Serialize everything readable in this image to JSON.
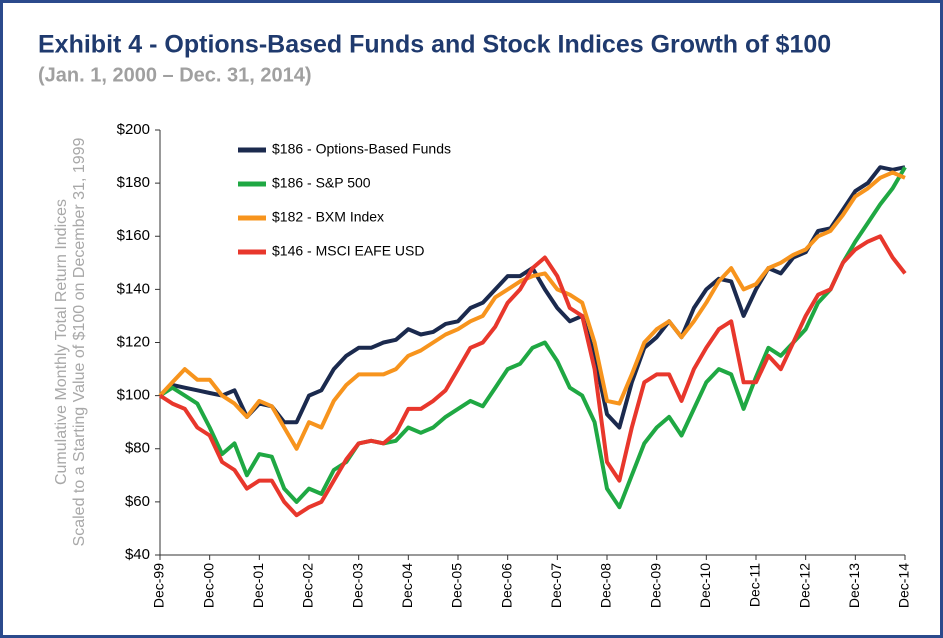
{
  "chart_data": {
    "type": "line",
    "title": "Exhibit 4 -  Options-Based Funds and Stock Indices Growth of $100",
    "subtitle": "(Jan. 1, 2000 – Dec. 31, 2014)",
    "ylabel": [
      "Cumulative Monthly Total Return Indices",
      "Scaled to a Starting Value of $100 on December 31, 1999"
    ],
    "categories": [
      "Dec-99",
      null,
      null,
      null,
      "Dec-00",
      null,
      null,
      null,
      "Dec-01",
      null,
      null,
      null,
      "Dec-02",
      null,
      null,
      null,
      "Dec-03",
      null,
      null,
      null,
      "Dec-04",
      null,
      null,
      null,
      "Dec-05",
      null,
      null,
      null,
      "Dec-06",
      null,
      null,
      null,
      "Dec-07",
      null,
      null,
      null,
      "Dec-08",
      null,
      null,
      null,
      "Dec-09",
      null,
      null,
      null,
      "Dec-10",
      null,
      null,
      null,
      "Dec-11",
      null,
      null,
      null,
      "Dec-12",
      null,
      null,
      null,
      "Dec-13",
      null,
      null,
      null,
      "Dec-14"
    ],
    "series": [
      {
        "name": "$186 - Options-Based Funds",
        "color": "#1b2a4e",
        "values": [
          100,
          104,
          103,
          102,
          101,
          100,
          102,
          92,
          97,
          96,
          90,
          90,
          100,
          102,
          110,
          115,
          118,
          118,
          120,
          121,
          125,
          123,
          124,
          127,
          128,
          133,
          135,
          140,
          145,
          145,
          148,
          140,
          133,
          128,
          130,
          115,
          93,
          88,
          105,
          118,
          122,
          128,
          122,
          133,
          140,
          144,
          143,
          130,
          140,
          148,
          146,
          152,
          154,
          162,
          163,
          170,
          177,
          180,
          186,
          185,
          186
        ]
      },
      {
        "name": "$186 - S&P 500",
        "color": "#1fa843",
        "values": [
          100,
          103,
          100,
          97,
          88,
          78,
          82,
          70,
          78,
          77,
          65,
          60,
          65,
          63,
          72,
          75,
          82,
          83,
          82,
          83,
          88,
          86,
          88,
          92,
          95,
          98,
          96,
          103,
          110,
          112,
          118,
          120,
          113,
          103,
          100,
          90,
          65,
          58,
          70,
          82,
          88,
          92,
          85,
          95,
          105,
          110,
          108,
          95,
          107,
          118,
          115,
          120,
          125,
          135,
          140,
          150,
          158,
          165,
          172,
          178,
          186
        ]
      },
      {
        "name": "$182 - BXM Index",
        "color": "#f7941d",
        "values": [
          100,
          105,
          110,
          106,
          106,
          100,
          97,
          92,
          98,
          96,
          88,
          80,
          90,
          88,
          98,
          104,
          108,
          108,
          108,
          110,
          115,
          117,
          120,
          123,
          125,
          128,
          130,
          137,
          140,
          143,
          145,
          146,
          140,
          138,
          135,
          120,
          98,
          97,
          108,
          120,
          125,
          128,
          122,
          128,
          135,
          143,
          148,
          140,
          142,
          148,
          150,
          153,
          155,
          160,
          162,
          168,
          175,
          178,
          182,
          184,
          182
        ]
      },
      {
        "name": "$146 - MSCI EAFE USD",
        "color": "#e8372c",
        "values": [
          100,
          97,
          95,
          88,
          85,
          75,
          72,
          65,
          68,
          68,
          60,
          55,
          58,
          60,
          68,
          76,
          82,
          83,
          82,
          86,
          95,
          95,
          98,
          102,
          110,
          118,
          120,
          126,
          135,
          140,
          148,
          152,
          145,
          133,
          130,
          110,
          75,
          68,
          88,
          105,
          108,
          108,
          98,
          110,
          118,
          125,
          128,
          105,
          105,
          115,
          110,
          120,
          130,
          138,
          140,
          150,
          155,
          158,
          160,
          152,
          146
        ]
      }
    ],
    "ylim": [
      40,
      200
    ],
    "yticks": [
      {
        "value": 40,
        "label": "$40"
      },
      {
        "value": 60,
        "label": "$60"
      },
      {
        "value": 80,
        "label": "$80"
      },
      {
        "value": 100,
        "label": "$100"
      },
      {
        "value": 120,
        "label": "$120"
      },
      {
        "value": 140,
        "label": "$140"
      },
      {
        "value": 160,
        "label": "$160"
      },
      {
        "value": 180,
        "label": "$180"
      },
      {
        "value": 200,
        "label": "$200"
      }
    ],
    "grid": false,
    "legend": "upper left"
  }
}
